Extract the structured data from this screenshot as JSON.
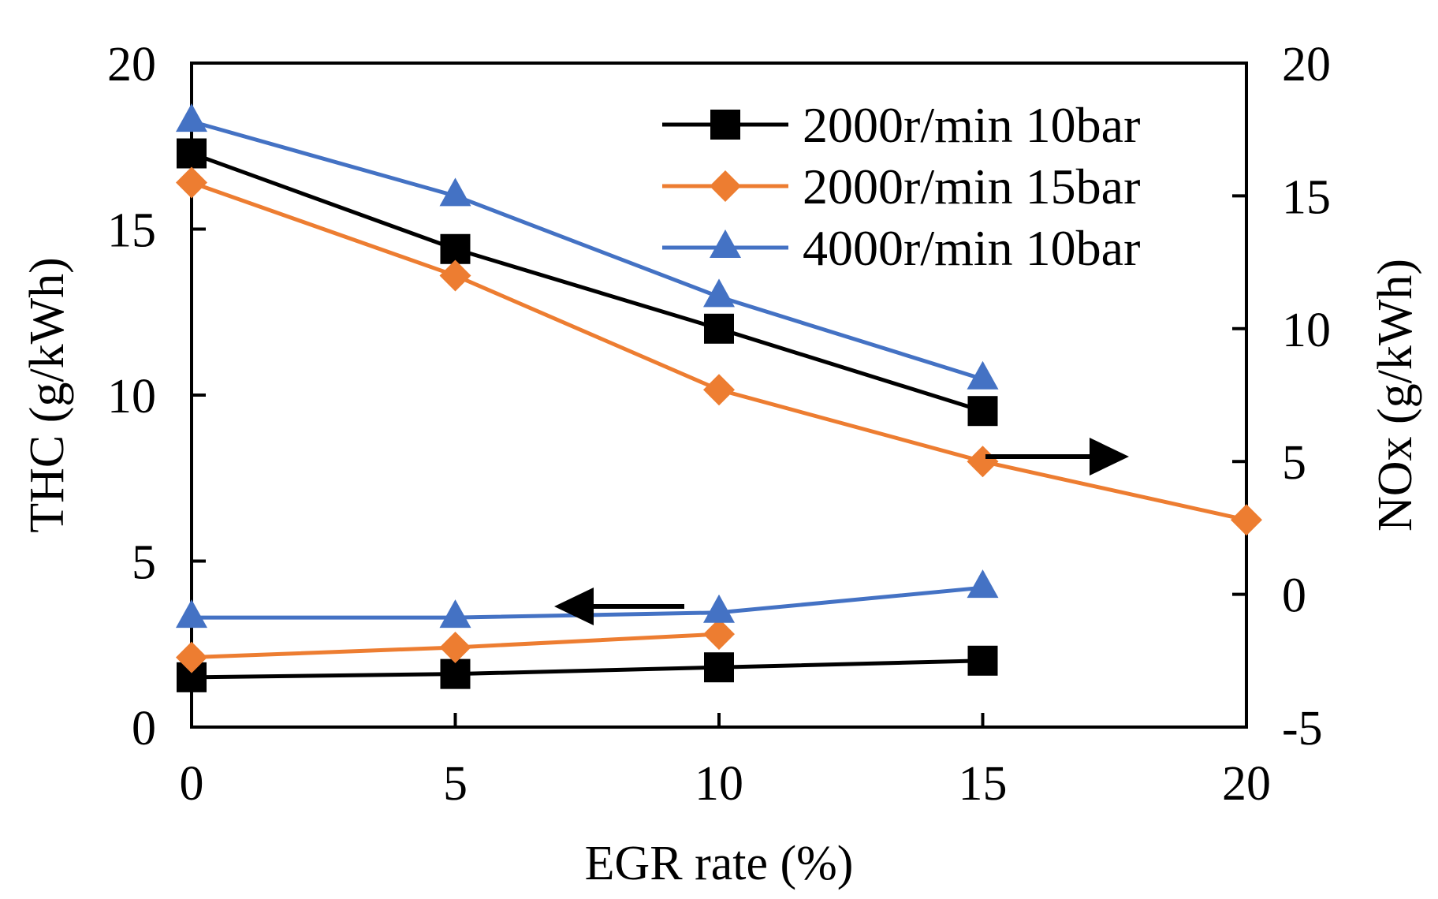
{
  "colors": {
    "series_2000_10": "#000000",
    "series_2000_15": "#ED7D31",
    "series_4000_10": "#4472C4",
    "axis": "#000000",
    "background": "#ffffff"
  },
  "chart_data": {
    "type": "line",
    "xlabel": "EGR rate (%)",
    "ylabel_left": "THC (g/kWh)",
    "ylabel_right": "NOx (g/kWh)",
    "xlim": [
      0,
      20
    ],
    "ylim_left": [
      0,
      20
    ],
    "ylim_right": [
      -5,
      20
    ],
    "x_ticks": [
      "0",
      "5",
      "10",
      "15",
      "20"
    ],
    "y_left_ticks": [
      "0",
      "5",
      "10",
      "15",
      "20"
    ],
    "y_right_ticks": [
      "-5",
      "0",
      "5",
      "10",
      "15",
      "20"
    ],
    "legend": {
      "placement": "top-right",
      "entries": [
        "2000r/min 10bar",
        "2000r/min 15bar",
        "4000r/min 10bar"
      ]
    },
    "series": [
      {
        "name": "2000r/min 10bar",
        "axis": "left",
        "quantity": "THC",
        "marker": "square",
        "color_key": "series_2000_10",
        "x": [
          0,
          5,
          10,
          15
        ],
        "values": [
          1.5,
          1.6,
          1.8,
          2.0
        ]
      },
      {
        "name": "2000r/min 15bar",
        "axis": "left",
        "quantity": "THC",
        "marker": "diamond",
        "color_key": "series_2000_15",
        "x": [
          0,
          5,
          10
        ],
        "values": [
          2.1,
          2.4,
          2.8
        ]
      },
      {
        "name": "4000r/min 10bar",
        "axis": "left",
        "quantity": "THC",
        "marker": "triangle",
        "color_key": "series_4000_10",
        "x": [
          0,
          5,
          10,
          15
        ],
        "values": [
          3.3,
          3.3,
          3.45,
          4.2
        ]
      },
      {
        "name": "2000r/min 10bar",
        "axis": "right",
        "quantity": "NOx",
        "marker": "square",
        "color_key": "series_2000_10",
        "x": [
          0,
          5,
          10,
          15
        ],
        "values": [
          16.6,
          13.0,
          10.0,
          6.9
        ]
      },
      {
        "name": "2000r/min 15bar",
        "axis": "right",
        "quantity": "NOx",
        "marker": "diamond",
        "color_key": "series_2000_15",
        "x": [
          0,
          5,
          10,
          15,
          20
        ],
        "values": [
          15.5,
          12.0,
          7.7,
          5.0,
          2.8
        ]
      },
      {
        "name": "4000r/min 10bar",
        "axis": "right",
        "quantity": "NOx",
        "marker": "triangle",
        "color_key": "series_4000_10",
        "x": [
          0,
          5,
          10,
          15
        ],
        "values": [
          17.8,
          15.0,
          11.2,
          8.1
        ]
      }
    ],
    "annotations": [
      {
        "type": "arrow",
        "direction": "right",
        "meaning": "NOx curves read on right axis"
      },
      {
        "type": "arrow",
        "direction": "left",
        "meaning": "THC curves read on left axis"
      }
    ]
  }
}
